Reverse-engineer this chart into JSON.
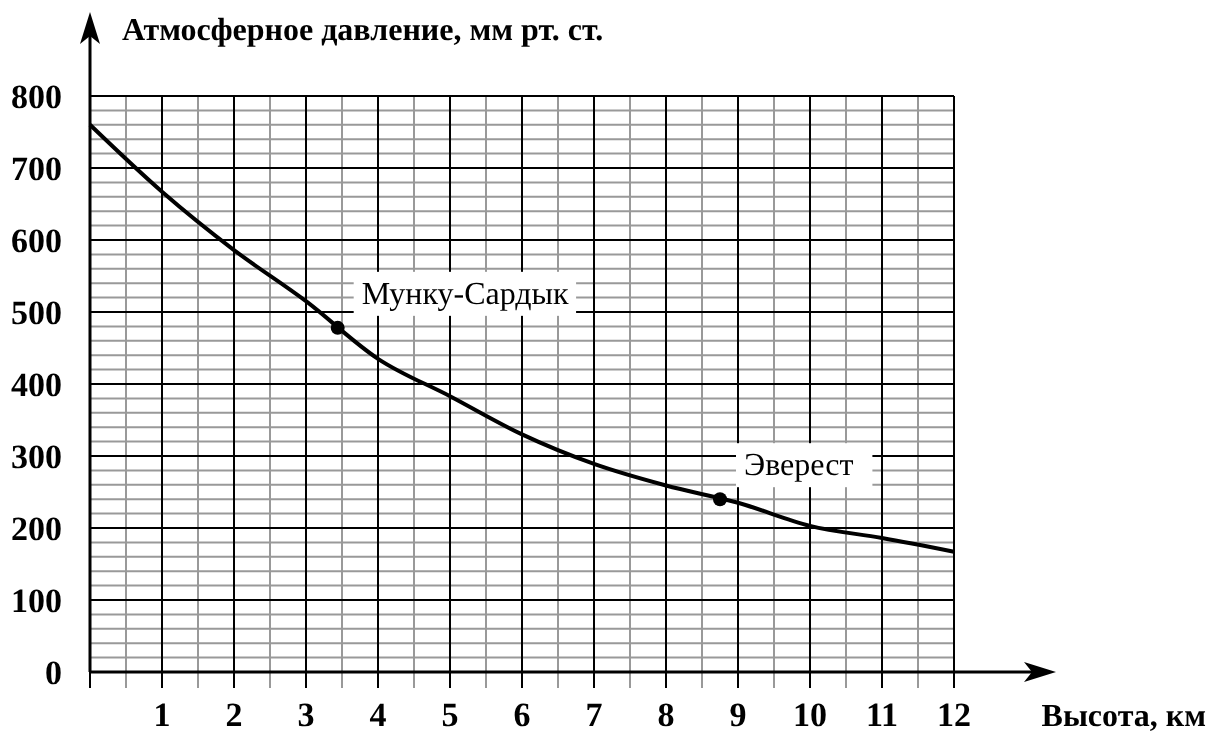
{
  "chart_data": {
    "type": "line",
    "ylabel": "Атмосферное давление, мм  рт. ст.",
    "xlabel": "Высота, км",
    "xlim": [
      0,
      12
    ],
    "ylim": [
      0,
      800
    ],
    "xticks": [
      {
        "value": 0,
        "label": null
      },
      1,
      2,
      3,
      4,
      5,
      6,
      7,
      8,
      9,
      10,
      11,
      12
    ],
    "yticks": [
      0,
      100,
      200,
      300,
      400,
      500,
      600,
      700,
      800
    ],
    "grid": true,
    "series": [
      {
        "color": "#000000",
        "x": [
          0,
          1,
          2,
          3,
          4,
          5,
          6,
          7,
          8,
          9,
          10,
          11,
          12
        ],
        "values": [
          760,
          667,
          586,
          515,
          435,
          383,
          330,
          289,
          259,
          235,
          203,
          186,
          167
        ]
      },
      {
        "type": "scatter",
        "color": "#000000",
        "marker": "circle",
        "x": [
          3.44,
          8.75
        ],
        "values": [
          478,
          240
        ]
      }
    ],
    "annotations": [
      {
        "text": "Мунку-Сардык",
        "x": 3.44,
        "y": 478
      },
      {
        "text": "Эверест",
        "x": 8.75,
        "y": 240
      }
    ]
  }
}
